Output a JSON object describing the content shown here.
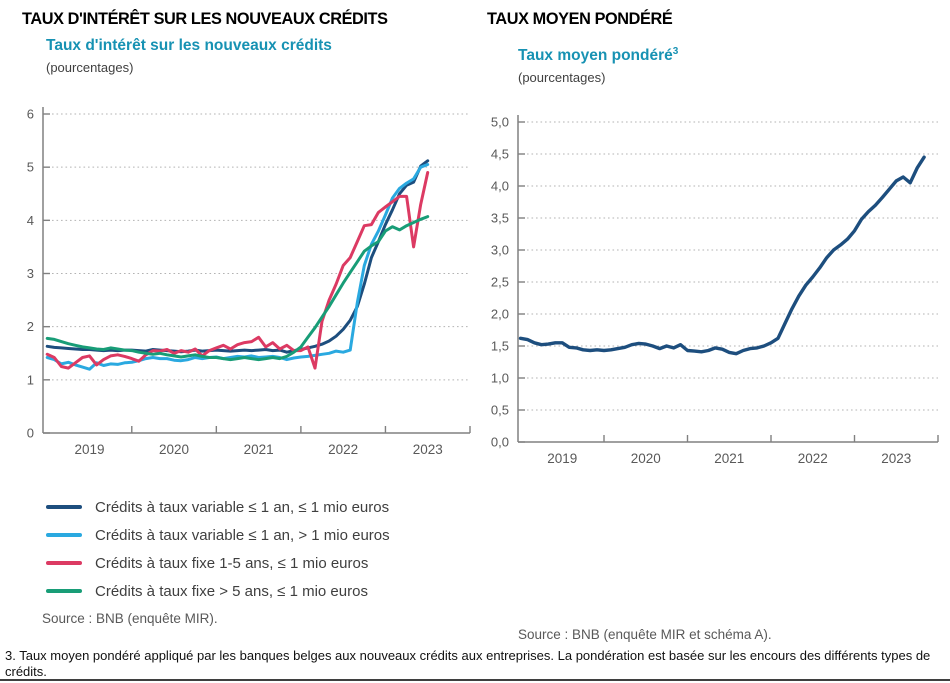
{
  "page": {
    "title_left": "TAUX D'INTÉRÊT SUR LES NOUVEAUX CRÉDITS",
    "title_right": "TAUX MOYEN PONDÉRÉ"
  },
  "left_panel": {
    "subtitle": "Taux d'intérêt sur les nouveaux crédits",
    "unit": "(pourcentages)",
    "source": "Source : BNB (enquête MIR)."
  },
  "right_panel": {
    "subtitle": "Taux moyen pondéré",
    "footnote_ref": "3",
    "unit": "(pourcentages)",
    "source": "Source : BNB (enquête MIR et schéma A)."
  },
  "footnote": "3. Taux moyen pondéré appliqué par les banques belges aux nouveaux crédits aux entreprises. La pondération est basée sur les encours des différents types de crédits.",
  "colors": {
    "accent_teal": "#1792b3",
    "navy": "#1d4e7e",
    "cyan": "#2aa9e0",
    "red": "#dc3a63",
    "green": "#189d77",
    "axis_gray": "#808080",
    "grid_gray": "#b3b3b3",
    "tick_label_gray": "#595959"
  },
  "chart_data": [
    {
      "type": "line",
      "title": "Taux d'intérêt sur les nouveaux crédits",
      "ylabel": "pourcentages",
      "ylim": [
        0,
        6
      ],
      "y_ticks": [
        0,
        1,
        2,
        3,
        4,
        5,
        6
      ],
      "y_tick_labels": [
        "0",
        "1",
        "2",
        "3",
        "4",
        "5",
        "6"
      ],
      "x_domain": [
        2018.95,
        2024.0
      ],
      "x_tick_years": [
        2020,
        2021,
        2022,
        2023,
        2024
      ],
      "x_year_labels": [
        [
          "2019",
          2019.5
        ],
        [
          "2020",
          2020.5
        ],
        [
          "2021",
          2021.5
        ],
        [
          "2022",
          2022.5
        ],
        [
          "2023",
          2023.5
        ]
      ],
      "start_year": 2019.0,
      "points_per_year": 12,
      "grid": true,
      "legend_position": "below-left",
      "series": [
        {
          "name": "Crédits à taux variable ≤ 1 an, ≤ 1 mio euros",
          "color": "#1d4e7e",
          "values": [
            1.63,
            1.61,
            1.6,
            1.59,
            1.58,
            1.57,
            1.57,
            1.56,
            1.55,
            1.56,
            1.55,
            1.56,
            1.56,
            1.55,
            1.54,
            1.57,
            1.56,
            1.55,
            1.54,
            1.53,
            1.54,
            1.56,
            1.54,
            1.55,
            1.56,
            1.55,
            1.54,
            1.55,
            1.56,
            1.55,
            1.56,
            1.57,
            1.55,
            1.56,
            1.52,
            1.55,
            1.57,
            1.6,
            1.63,
            1.67,
            1.73,
            1.82,
            1.95,
            2.12,
            2.38,
            2.8,
            3.3,
            3.6,
            3.92,
            4.2,
            4.5,
            4.66,
            4.72,
            5.02,
            5.12
          ]
        },
        {
          "name": "Crédits à taux variable ≤ 1 an, > 1 mio euros",
          "color": "#2aa9e0",
          "values": [
            1.42,
            1.38,
            1.3,
            1.33,
            1.28,
            1.24,
            1.2,
            1.32,
            1.27,
            1.3,
            1.29,
            1.32,
            1.33,
            1.36,
            1.4,
            1.42,
            1.4,
            1.4,
            1.37,
            1.36,
            1.38,
            1.42,
            1.4,
            1.42,
            1.43,
            1.4,
            1.42,
            1.44,
            1.43,
            1.45,
            1.42,
            1.43,
            1.44,
            1.42,
            1.38,
            1.41,
            1.43,
            1.44,
            1.46,
            1.48,
            1.5,
            1.54,
            1.52,
            1.56,
            2.45,
            3.15,
            3.55,
            3.8,
            4.1,
            4.42,
            4.6,
            4.7,
            4.78,
            5.0,
            5.05
          ]
        },
        {
          "name": "Crédits à taux fixe 1-5 ans, ≤ 1 mio euros",
          "color": "#dc3a63",
          "values": [
            1.48,
            1.42,
            1.25,
            1.22,
            1.32,
            1.42,
            1.45,
            1.28,
            1.38,
            1.45,
            1.47,
            1.44,
            1.4,
            1.35,
            1.47,
            1.55,
            1.54,
            1.57,
            1.5,
            1.55,
            1.52,
            1.58,
            1.45,
            1.55,
            1.6,
            1.65,
            1.58,
            1.66,
            1.7,
            1.72,
            1.8,
            1.62,
            1.7,
            1.58,
            1.65,
            1.55,
            1.55,
            1.62,
            1.22,
            2.1,
            2.5,
            2.8,
            3.15,
            3.3,
            3.6,
            3.9,
            3.92,
            4.15,
            4.25,
            4.35,
            4.45,
            4.45,
            3.5,
            4.3,
            4.9
          ]
        },
        {
          "name": "Crédits à taux fixe > 5 ans, ≤ 1 mio euros",
          "color": "#189d77",
          "values": [
            1.78,
            1.76,
            1.72,
            1.68,
            1.65,
            1.62,
            1.6,
            1.58,
            1.57,
            1.6,
            1.58,
            1.56,
            1.55,
            1.52,
            1.5,
            1.48,
            1.5,
            1.47,
            1.45,
            1.43,
            1.45,
            1.47,
            1.44,
            1.42,
            1.42,
            1.4,
            1.38,
            1.4,
            1.42,
            1.4,
            1.38,
            1.4,
            1.42,
            1.4,
            1.44,
            1.52,
            1.62,
            1.8,
            1.98,
            2.18,
            2.38,
            2.6,
            2.82,
            3.02,
            3.22,
            3.42,
            3.52,
            3.6,
            3.8,
            3.88,
            3.82,
            3.9,
            3.96,
            4.02,
            4.07
          ]
        }
      ]
    },
    {
      "type": "line",
      "title": "Taux moyen pondéré",
      "ylabel": "pourcentages",
      "ylim": [
        0,
        5
      ],
      "y_ticks": [
        0,
        0.5,
        1,
        1.5,
        2,
        2.5,
        3,
        3.5,
        4,
        4.5,
        5
      ],
      "y_tick_labels": [
        "0,0",
        "0,5",
        "1,0",
        "1,5",
        "2,0",
        "2,5",
        "3,0",
        "3,5",
        "4,0",
        "4,5",
        "5,0"
      ],
      "x_domain": [
        2018.97,
        2024.0
      ],
      "x_tick_years": [
        2020,
        2021,
        2022,
        2023,
        2024
      ],
      "x_year_labels": [
        [
          "2019",
          2019.5
        ],
        [
          "2020",
          2020.5
        ],
        [
          "2021",
          2021.5
        ],
        [
          "2022",
          2022.5
        ],
        [
          "2023",
          2023.5
        ]
      ],
      "start_year": 2019.0,
      "points_per_year": 12,
      "grid": true,
      "legend_position": "none",
      "series": [
        {
          "name": "Taux moyen pondéré",
          "color": "#1d4e7e",
          "values": [
            1.62,
            1.6,
            1.55,
            1.52,
            1.53,
            1.55,
            1.55,
            1.48,
            1.47,
            1.44,
            1.43,
            1.44,
            1.43,
            1.44,
            1.46,
            1.48,
            1.52,
            1.54,
            1.53,
            1.5,
            1.46,
            1.5,
            1.47,
            1.52,
            1.43,
            1.42,
            1.41,
            1.43,
            1.47,
            1.45,
            1.4,
            1.38,
            1.43,
            1.46,
            1.47,
            1.5,
            1.55,
            1.62,
            1.85,
            2.08,
            2.28,
            2.45,
            2.58,
            2.72,
            2.88,
            3.0,
            3.08,
            3.17,
            3.3,
            3.48,
            3.6,
            3.7,
            3.82,
            3.95,
            4.08,
            4.14,
            4.05,
            4.28,
            4.45
          ]
        }
      ]
    }
  ]
}
